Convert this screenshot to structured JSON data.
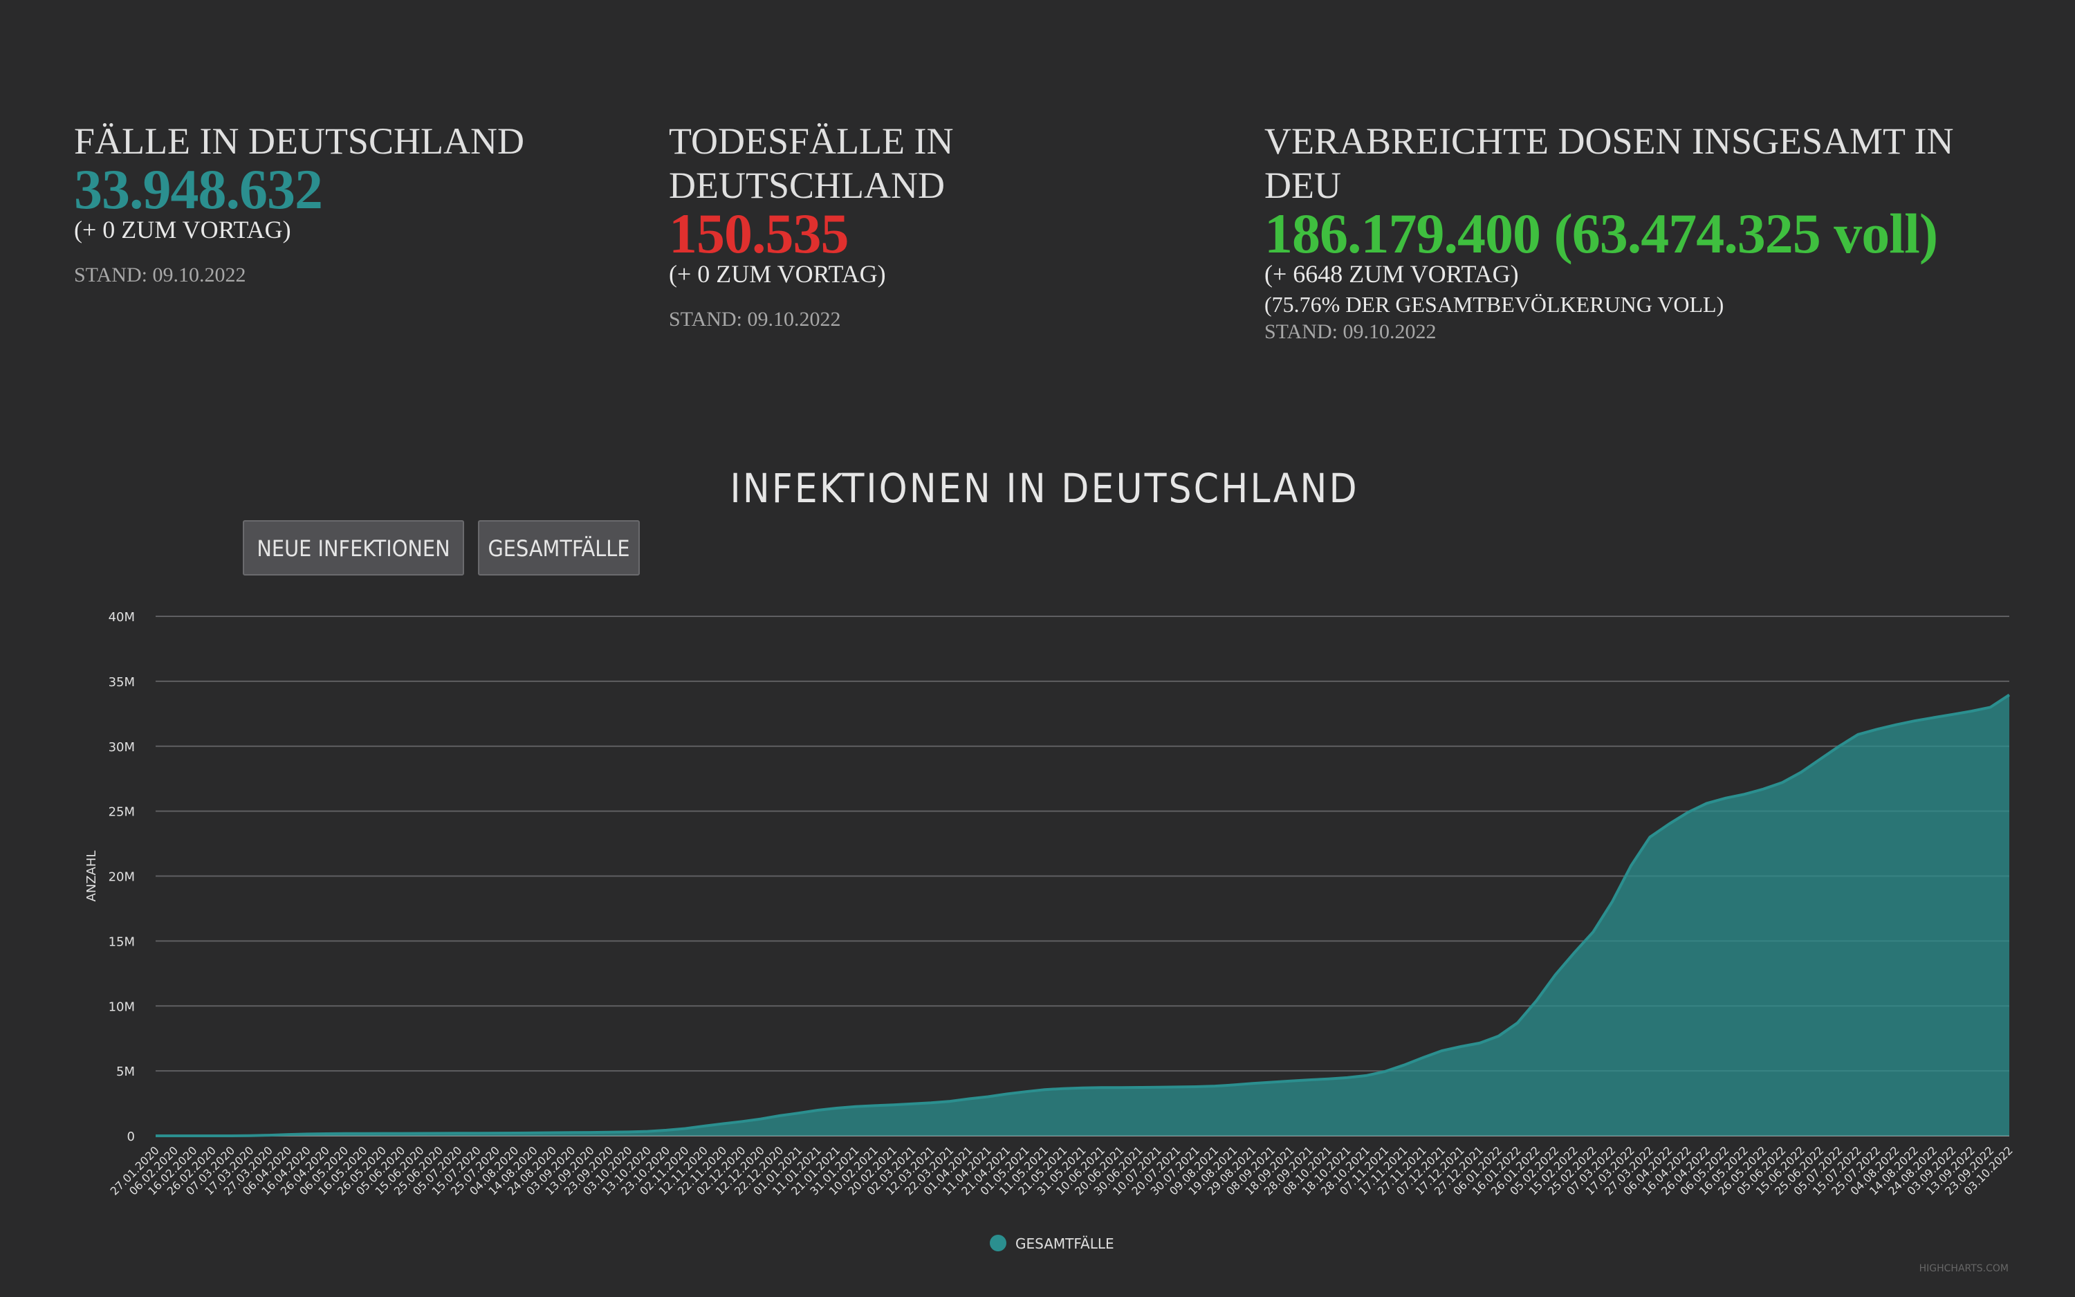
{
  "stats": {
    "cases": {
      "title": "FÄLLE IN DEUTSCHLAND",
      "value": "33.948.632",
      "delta": "(+ 0 ZUM VORTAG)",
      "date": "STAND: 09.10.2022",
      "color": "#2b8f8f"
    },
    "deaths": {
      "title_line1": "TODESFÄLLE IN",
      "title_line2": "DEUTSCHLAND",
      "value": "150.535",
      "delta": "(+ 0 ZUM VORTAG)",
      "date": "STAND: 09.10.2022",
      "color": "#e0302e"
    },
    "vaccinations": {
      "title_line1": "VERABREICHTE DOSEN INSGESAMT IN",
      "title_line2": "DEU",
      "value": "186.179.400 (63.474.325 voll)",
      "delta": "(+ 6648 ZUM VORTAG)",
      "share": "(75.76% DER GESAMTBEVÖLKERUNG VOLL)",
      "date": "STAND: 09.10.2022",
      "color": "#3fbf3f"
    }
  },
  "chart_controls": {
    "neue_label": "NEUE INFEKTIONEN",
    "gesamt_label": "GESAMTFÄLLE"
  },
  "credits": "HIGHCHARTS.COM",
  "chart_data": {
    "type": "area",
    "title": "INFEKTIONEN IN DEUTSCHLAND",
    "ylabel": "ANZAHL",
    "xlabel": "",
    "ylim": [
      0,
      40000000
    ],
    "yticks": [
      "0",
      "5M",
      "10M",
      "15M",
      "20M",
      "25M",
      "30M",
      "35M",
      "40M"
    ],
    "grid": true,
    "legend": "bottom-center",
    "color": "#2b8f8f",
    "series": [
      {
        "name": "GESAMTFÄLLE",
        "x": [
          "27.01.2020",
          "06.02.2020",
          "16.02.2020",
          "26.02.2020",
          "07.03.2020",
          "17.03.2020",
          "27.03.2020",
          "06.04.2020",
          "16.04.2020",
          "26.04.2020",
          "06.05.2020",
          "16.05.2020",
          "26.05.2020",
          "05.06.2020",
          "15.06.2020",
          "25.06.2020",
          "05.07.2020",
          "15.07.2020",
          "25.07.2020",
          "04.08.2020",
          "14.08.2020",
          "24.08.2020",
          "03.09.2020",
          "13.09.2020",
          "23.09.2020",
          "03.10.2020",
          "13.10.2020",
          "23.10.2020",
          "02.11.2020",
          "12.11.2020",
          "22.11.2020",
          "02.12.2020",
          "12.12.2020",
          "22.12.2020",
          "01.01.2021",
          "11.01.2021",
          "21.01.2021",
          "31.01.2021",
          "10.02.2021",
          "20.02.2021",
          "02.03.2021",
          "12.03.2021",
          "22.03.2021",
          "01.04.2021",
          "11.04.2021",
          "21.04.2021",
          "01.05.2021",
          "11.05.2021",
          "21.05.2021",
          "31.05.2021",
          "10.06.2021",
          "20.06.2021",
          "30.06.2021",
          "10.07.2021",
          "20.07.2021",
          "30.07.2021",
          "09.08.2021",
          "19.08.2021",
          "29.08.2021",
          "08.09.2021",
          "18.09.2021",
          "28.09.2021",
          "08.10.2021",
          "18.10.2021",
          "28.10.2021",
          "07.11.2021",
          "17.11.2021",
          "27.11.2021",
          "07.12.2021",
          "17.12.2021",
          "27.12.2021",
          "06.01.2022",
          "16.01.2022",
          "26.01.2022",
          "05.02.2022",
          "15.02.2022",
          "25.02.2022",
          "07.03.2022",
          "17.03.2022",
          "27.03.2022",
          "06.04.2022",
          "16.04.2022",
          "26.04.2022",
          "06.05.2022",
          "16.05.2022",
          "26.05.2022",
          "05.06.2022",
          "15.06.2022",
          "25.06.2022",
          "05.07.2022",
          "15.07.2022",
          "25.07.2022",
          "04.08.2022",
          "14.08.2022",
          "24.08.2022",
          "03.09.2022",
          "13.09.2022",
          "23.09.2022",
          "03.10.2022"
        ],
        "values": [
          0,
          16,
          16,
          46,
          1000,
          9000,
          50000,
          100000,
          140000,
          158000,
          168000,
          175000,
          180000,
          183000,
          187000,
          193000,
          197000,
          202000,
          206000,
          215000,
          225000,
          240000,
          250000,
          262000,
          280000,
          300000,
          340000,
          430000,
          560000,
          750000,
          930000,
          1100000,
          1300000,
          1550000,
          1750000,
          1970000,
          2130000,
          2250000,
          2320000,
          2380000,
          2460000,
          2540000,
          2660000,
          2850000,
          3010000,
          3220000,
          3400000,
          3560000,
          3640000,
          3690000,
          3710000,
          3720000,
          3730000,
          3740000,
          3760000,
          3780000,
          3830000,
          3920000,
          4030000,
          4130000,
          4220000,
          4310000,
          4380000,
          4480000,
          4640000,
          4960000,
          5450000,
          6020000,
          6550000,
          6870000,
          7140000,
          7680000,
          8700000,
          10400000,
          12400000,
          14100000,
          15700000,
          18000000,
          20800000,
          23000000,
          24000000,
          24900000,
          25600000,
          26000000,
          26300000,
          26700000,
          27200000,
          28000000,
          29000000,
          30000000,
          30900000,
          31300000,
          31650000,
          31950000,
          32200000,
          32450000,
          32700000,
          33000000,
          33948632
        ]
      }
    ]
  }
}
